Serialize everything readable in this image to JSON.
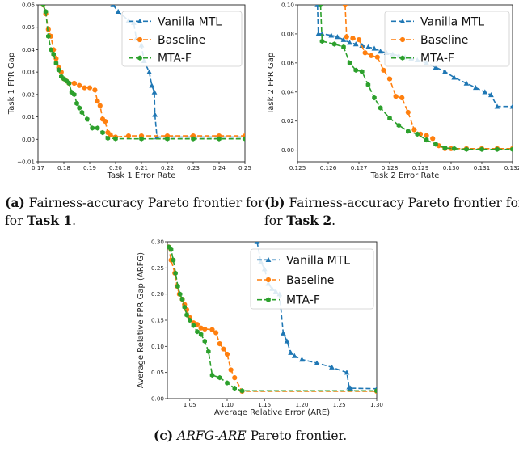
{
  "colors": {
    "Vanilla MTL": "#1f77b4",
    "Baseline": "#ff7f0e",
    "MTA-F": "#2ca02c"
  },
  "captions": {
    "a": {
      "label": "(a)",
      "text": "Fairness-accuracy Pareto frontier for",
      "bold": "Task 1",
      "end": "."
    },
    "b": {
      "label": "(b)",
      "text": "Fairness-accuracy Pareto frontier for",
      "bold": "Task 2",
      "end": "."
    },
    "c": {
      "label": "(c)",
      "italic": "ARFG-ARE",
      "text": "Pareto frontier."
    }
  },
  "chart_data": [
    {
      "id": "a",
      "type": "line",
      "xlabel": "Task 1 Error Rate",
      "ylabel": "Task 1 FPR Gap",
      "xlim": [
        0.17,
        0.25
      ],
      "ylim": [
        -0.01,
        0.06
      ],
      "xticks": [
        0.17,
        0.18,
        0.19,
        0.2,
        0.21,
        0.22,
        0.23,
        0.24,
        0.25
      ],
      "xtick_labels": [
        "0.17",
        "0.18",
        "0.19",
        "0.20",
        "0.21",
        "0.22",
        "0.23",
        "0.24",
        "0.25"
      ],
      "yticks": [
        -0.01,
        0.0,
        0.01,
        0.02,
        0.03,
        0.04,
        0.05,
        0.06
      ],
      "ytick_labels": [
        "−0.01",
        "0.00",
        "0.01",
        "0.02",
        "0.03",
        "0.04",
        "0.05",
        "0.06"
      ],
      "legend": "top-right",
      "series": [
        {
          "name": "Vanilla MTL",
          "marker": "triangle",
          "x": [
            0.199,
            0.201,
            0.205,
            0.207,
            0.208,
            0.21,
            0.211,
            0.213,
            0.214,
            0.215,
            0.2152,
            0.216,
            0.25
          ],
          "y": [
            0.06,
            0.057,
            0.053,
            0.052,
            0.045,
            0.042,
            0.035,
            0.03,
            0.024,
            0.021,
            0.011,
            0.001,
            0.001
          ]
        },
        {
          "name": "Baseline",
          "marker": "circle",
          "x": [
            0.172,
            0.173,
            0.174,
            0.175,
            0.176,
            0.177,
            0.178,
            0.179,
            0.18,
            0.181,
            0.182,
            0.184,
            0.186,
            0.188,
            0.19,
            0.192,
            0.193,
            0.194,
            0.195,
            0.196,
            0.197,
            0.198,
            0.2,
            0.205,
            0.21,
            0.22,
            0.23,
            0.24,
            0.25
          ],
          "y": [
            0.06,
            0.056,
            0.049,
            0.046,
            0.04,
            0.036,
            0.032,
            0.03,
            0.027,
            0.026,
            0.025,
            0.025,
            0.024,
            0.023,
            0.023,
            0.022,
            0.017,
            0.015,
            0.009,
            0.008,
            0.003,
            0.002,
            0.001,
            0.0015,
            0.0015,
            0.0015,
            0.0015,
            0.0015,
            0.0015
          ]
        },
        {
          "name": "MTA-F",
          "marker": "hexagon",
          "x": [
            0.172,
            0.173,
            0.174,
            0.175,
            0.176,
            0.177,
            0.178,
            0.179,
            0.18,
            0.181,
            0.182,
            0.183,
            0.184,
            0.185,
            0.186,
            0.187,
            0.189,
            0.191,
            0.193,
            0.195,
            0.197,
            0.2,
            0.21,
            0.22,
            0.23,
            0.24,
            0.25
          ],
          "y": [
            0.06,
            0.057,
            0.046,
            0.04,
            0.038,
            0.034,
            0.031,
            0.028,
            0.027,
            0.026,
            0.025,
            0.021,
            0.02,
            0.016,
            0.014,
            0.012,
            0.009,
            0.005,
            0.005,
            0.003,
            0.0005,
            0.0003,
            0.0002,
            0.0002,
            0.0002,
            0.0002,
            0.0002
          ]
        }
      ]
    },
    {
      "id": "b",
      "type": "line",
      "xlabel": "Task 2 Error Rate",
      "ylabel": "Task 2 FPR Gap",
      "xlim": [
        0.125,
        0.132
      ],
      "ylim": [
        -0.008,
        0.1
      ],
      "xticks": [
        0.125,
        0.126,
        0.127,
        0.128,
        0.129,
        0.13,
        0.131,
        0.132
      ],
      "xtick_labels": [
        "0.125",
        "0.126",
        "0.127",
        "0.128",
        "0.129",
        "0.130",
        "0.131",
        "0.132"
      ],
      "yticks": [
        0.0,
        0.02,
        0.04,
        0.06,
        0.08,
        0.1
      ],
      "ytick_labels": [
        "0.00",
        "0.02",
        "0.04",
        "0.06",
        "0.08",
        "0.10"
      ],
      "legend": "top-right",
      "series": [
        {
          "name": "Vanilla MTL",
          "marker": "triangle",
          "x": [
            0.12565,
            0.12568,
            0.1258,
            0.1261,
            0.1263,
            0.1265,
            0.1267,
            0.1269,
            0.1271,
            0.1273,
            0.1275,
            0.1277,
            0.1279,
            0.1281,
            0.1283,
            0.1285,
            0.1287,
            0.1289,
            0.1292,
            0.1295,
            0.1298,
            0.1301,
            0.1305,
            0.1308,
            0.1311,
            0.1313,
            0.1315,
            0.132
          ],
          "y": [
            0.1,
            0.08,
            0.08,
            0.079,
            0.078,
            0.076,
            0.074,
            0.073,
            0.072,
            0.071,
            0.07,
            0.068,
            0.067,
            0.066,
            0.065,
            0.064,
            0.063,
            0.062,
            0.06,
            0.057,
            0.054,
            0.05,
            0.046,
            0.043,
            0.04,
            0.038,
            0.03,
            0.03
          ]
        },
        {
          "name": "Baseline",
          "marker": "circle",
          "x": [
            0.12655,
            0.1266,
            0.1268,
            0.127,
            0.1272,
            0.1274,
            0.1276,
            0.1278,
            0.128,
            0.1282,
            0.1284,
            0.1286,
            0.1288,
            0.129,
            0.1292,
            0.1294,
            0.1296,
            0.1298,
            0.13,
            0.1305,
            0.131,
            0.1315,
            0.132
          ],
          "y": [
            0.1,
            0.078,
            0.077,
            0.076,
            0.067,
            0.065,
            0.064,
            0.055,
            0.049,
            0.037,
            0.036,
            0.026,
            0.014,
            0.011,
            0.01,
            0.008,
            0.003,
            0.001,
            0.001,
            0.001,
            0.001,
            0.001,
            0.001
          ]
        },
        {
          "name": "MTA-F",
          "marker": "hexagon",
          "x": [
            0.12575,
            0.1258,
            0.1262,
            0.1265,
            0.1267,
            0.1269,
            0.1271,
            0.1273,
            0.1275,
            0.1277,
            0.128,
            0.1283,
            0.1286,
            0.1289,
            0.1292,
            0.1295,
            0.1298,
            0.1301,
            0.1305,
            0.131,
            0.1315,
            0.132
          ],
          "y": [
            0.1,
            0.075,
            0.073,
            0.071,
            0.06,
            0.055,
            0.054,
            0.045,
            0.036,
            0.029,
            0.022,
            0.017,
            0.013,
            0.011,
            0.007,
            0.004,
            0.0015,
            0.001,
            0.0005,
            0.0005,
            0.0005,
            0.0005
          ]
        }
      ]
    },
    {
      "id": "c",
      "type": "line",
      "xlabel": "Average Relative Error (ARE)",
      "ylabel": "Average Relative FPR Gap (ARFG)",
      "xlim": [
        1.02,
        1.3
      ],
      "ylim": [
        0.0,
        0.3
      ],
      "xticks": [
        1.05,
        1.1,
        1.15,
        1.2,
        1.25,
        1.3
      ],
      "xtick_labels": [
        "1.05",
        "1.10",
        "1.15",
        "1.20",
        "1.25",
        "1.30"
      ],
      "yticks": [
        0.0,
        0.05,
        0.1,
        0.15,
        0.2,
        0.25,
        0.3
      ],
      "ytick_labels": [
        "0.00",
        "0.05",
        "0.10",
        "0.15",
        "0.20",
        "0.25",
        "0.30"
      ],
      "legend": "top-right",
      "series": [
        {
          "name": "Vanilla MTL",
          "marker": "triangle",
          "x": [
            1.14,
            1.145,
            1.15,
            1.155,
            1.16,
            1.165,
            1.17,
            1.175,
            1.18,
            1.185,
            1.19,
            1.2,
            1.22,
            1.24,
            1.26,
            1.263,
            1.265,
            1.3
          ],
          "y": [
            0.3,
            0.262,
            0.248,
            0.22,
            0.21,
            0.205,
            0.2,
            0.125,
            0.11,
            0.088,
            0.082,
            0.075,
            0.068,
            0.06,
            0.05,
            0.022,
            0.02,
            0.019
          ]
        },
        {
          "name": "Baseline",
          "marker": "circle",
          "x": [
            1.022,
            1.025,
            1.03,
            1.033,
            1.036,
            1.04,
            1.043,
            1.046,
            1.05,
            1.055,
            1.06,
            1.065,
            1.07,
            1.08,
            1.085,
            1.09,
            1.095,
            1.1,
            1.105,
            1.11,
            1.12,
            1.3
          ],
          "y": [
            0.29,
            0.265,
            0.24,
            0.215,
            0.2,
            0.19,
            0.18,
            0.17,
            0.155,
            0.145,
            0.142,
            0.135,
            0.133,
            0.132,
            0.126,
            0.105,
            0.095,
            0.085,
            0.055,
            0.04,
            0.014,
            0.014
          ]
        },
        {
          "name": "MTA-F",
          "marker": "hexagon",
          "x": [
            1.022,
            1.025,
            1.028,
            1.031,
            1.034,
            1.037,
            1.04,
            1.043,
            1.046,
            1.05,
            1.055,
            1.06,
            1.065,
            1.07,
            1.075,
            1.08,
            1.09,
            1.1,
            1.11,
            1.12,
            1.3
          ],
          "y": [
            0.29,
            0.285,
            0.265,
            0.24,
            0.215,
            0.2,
            0.19,
            0.175,
            0.16,
            0.15,
            0.14,
            0.128,
            0.123,
            0.11,
            0.09,
            0.045,
            0.04,
            0.03,
            0.02,
            0.015,
            0.015
          ]
        }
      ]
    }
  ]
}
